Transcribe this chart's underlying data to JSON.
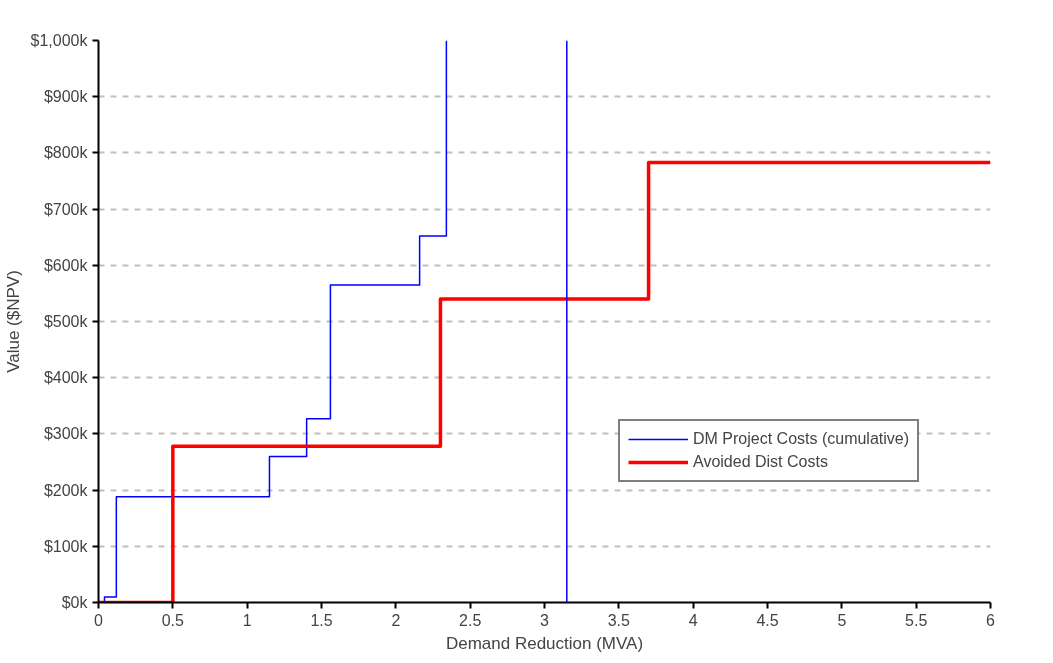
{
  "chart_data": {
    "type": "step",
    "xlabel": "Demand Reduction (MVA)",
    "ylabel": "Value ($NPV)",
    "xlim": [
      0,
      6
    ],
    "xticks": [
      0,
      0.5,
      1,
      1.5,
      2,
      2.5,
      3,
      3.5,
      4,
      4.5,
      5,
      5.5,
      6
    ],
    "ylim": [
      0,
      1000
    ],
    "yticks": [
      {
        "value": 0,
        "label": "$0k"
      },
      {
        "value": 100,
        "label": "$100k"
      },
      {
        "value": 200,
        "label": "$200k"
      },
      {
        "value": 300,
        "label": "$300k"
      },
      {
        "value": 400,
        "label": "$400k"
      },
      {
        "value": 500,
        "label": "$500k"
      },
      {
        "value": 600,
        "label": "$600k"
      },
      {
        "value": 700,
        "label": "$700k"
      },
      {
        "value": 800,
        "label": "$800k"
      },
      {
        "value": 900,
        "label": "$900k"
      },
      {
        "value": 1000,
        "label": "$1,000k"
      }
    ],
    "grid": "y",
    "legend": "right",
    "series": [
      {
        "name": "DM Project Costs (cumulative)",
        "color": "#0000ff",
        "x": [
          0,
          0.04,
          0.12,
          1.15,
          1.4,
          1.56,
          2.16,
          2.34
        ],
        "values": [
          0,
          10,
          188,
          260,
          327,
          565,
          652,
          1000
        ]
      },
      {
        "name": "Avoided Dist Costs",
        "color": "#ff0000",
        "x": [
          0,
          0.5,
          2.3,
          3.7,
          6
        ],
        "values": [
          0,
          278,
          540,
          783,
          783
        ]
      }
    ],
    "ref_lines": [
      {
        "axis": "x",
        "value": 3.15,
        "label": null,
        "color": "#0000ff"
      }
    ]
  }
}
